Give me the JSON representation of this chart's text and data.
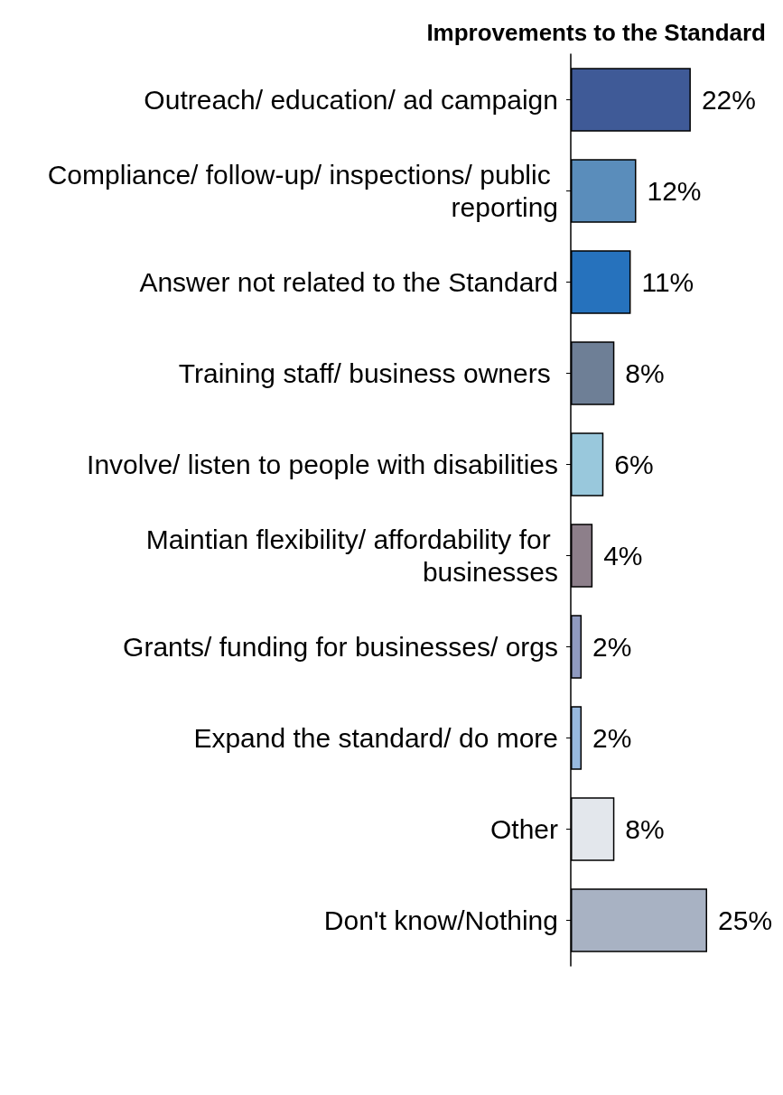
{
  "chart_data": {
    "type": "bar",
    "orientation": "horizontal",
    "title": "Improvements to the Standard",
    "categories": [
      "Outreach/ education/ ad campaign",
      "Compliance/ follow-up/ inspections/ public reporting",
      "Answer not related to the Standard",
      "Training staff/ business owners ",
      "Involve/ listen to people with disabilities",
      "Maintian flexibility/ affordability for businesses",
      "Grants/ funding for businesses/ orgs",
      "Expand the standard/ do more",
      "Other",
      "Don't know/Nothing"
    ],
    "values": [
      22,
      12,
      11,
      8,
      6,
      4,
      2,
      2,
      8,
      25
    ],
    "value_labels": [
      "22%",
      "12%",
      "11%",
      "8%",
      "6%",
      "4%",
      "2%",
      "2%",
      "8%",
      "25%"
    ],
    "colors": [
      "#3f5a97",
      "#5a8dbb",
      "#2672bd",
      "#6e7f96",
      "#99c8dc",
      "#8d7f8a",
      "#8f9ac0",
      "#97b9df",
      "#e3e7ec",
      "#a8b2c3"
    ],
    "grid": false
  }
}
